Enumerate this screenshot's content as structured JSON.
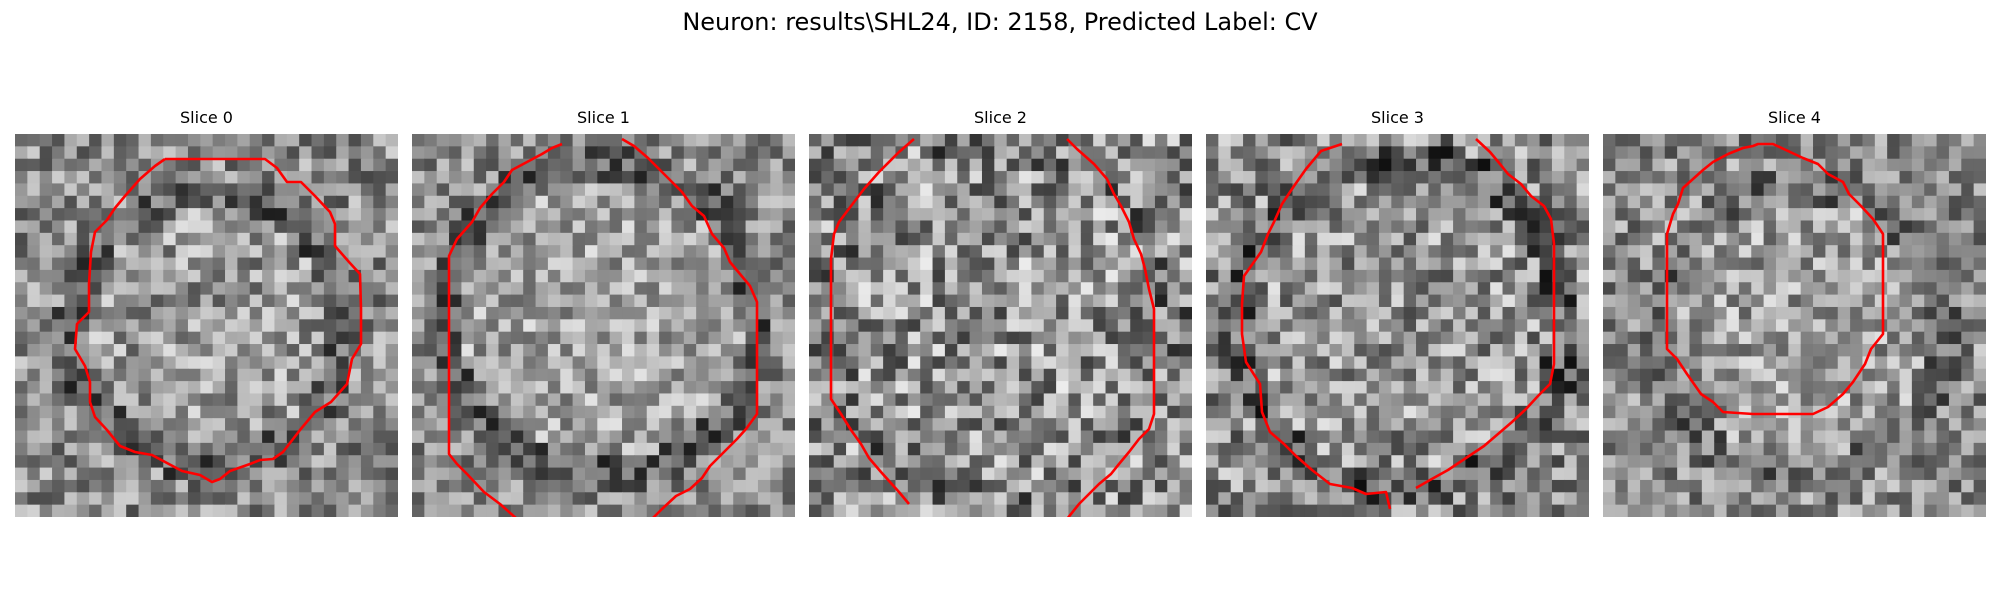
{
  "figure": {
    "title": "Neuron: results\\SHL24, ID: 2158, Predicted Label: CV"
  },
  "colors": {
    "contour": "#ff0000",
    "background": "#ffffff"
  },
  "panels": [
    {
      "title": "Slice 0"
    },
    {
      "title": "Slice 1"
    },
    {
      "title": "Slice 2"
    },
    {
      "title": "Slice 3"
    },
    {
      "title": "Slice 4"
    }
  ]
}
